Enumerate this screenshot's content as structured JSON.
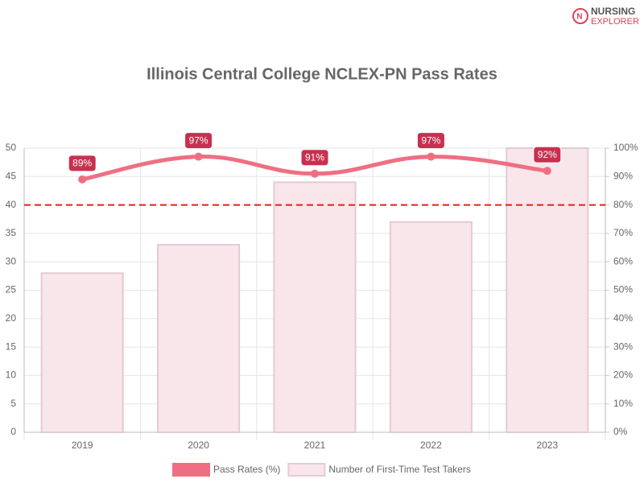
{
  "brand": {
    "line1": "NURSING",
    "line2": "EXPLORER"
  },
  "chart_data": {
    "type": "bar",
    "title": "Illinois Central College NCLEX-PN Pass Rates",
    "categories": [
      "2019",
      "2020",
      "2021",
      "2022",
      "2023"
    ],
    "series": [
      {
        "name": "Pass Rates (%)",
        "type": "line",
        "axis": "y2",
        "color": "#ef6f82",
        "label_color": "#c8304f",
        "values": [
          89,
          97,
          91,
          97,
          92
        ],
        "value_labels": [
          "89%",
          "97%",
          "91%",
          "97%",
          "92%"
        ]
      },
      {
        "name": "Number of First-Time Test Takers",
        "type": "bar",
        "color": "#f9e6eb",
        "border_color": "#e3cbd3",
        "values": [
          28,
          33,
          44,
          37,
          50
        ]
      }
    ],
    "ylim": [
      0,
      50
    ],
    "yticks": [
      0,
      5,
      10,
      15,
      20,
      25,
      30,
      35,
      40,
      45,
      50
    ],
    "y2lim": [
      0,
      100
    ],
    "y2ticks": [
      {
        "value": 0,
        "label": "0%"
      },
      {
        "value": 10,
        "label": "10%"
      },
      {
        "value": 20,
        "label": "20%"
      },
      {
        "value": 30,
        "label": "30%"
      },
      {
        "value": 40,
        "label": "40%"
      },
      {
        "value": 50,
        "label": "50%"
      },
      {
        "value": 60,
        "label": "60%"
      },
      {
        "value": 70,
        "label": "70%"
      },
      {
        "value": 80,
        "label": "80%"
      },
      {
        "value": 90,
        "label": "90%"
      },
      {
        "value": 100,
        "label": "100%"
      }
    ],
    "reference_line": {
      "value": 80,
      "axis": "y2",
      "color": "#e02020",
      "dashed": true
    },
    "grid": true,
    "legend": "bottom"
  }
}
